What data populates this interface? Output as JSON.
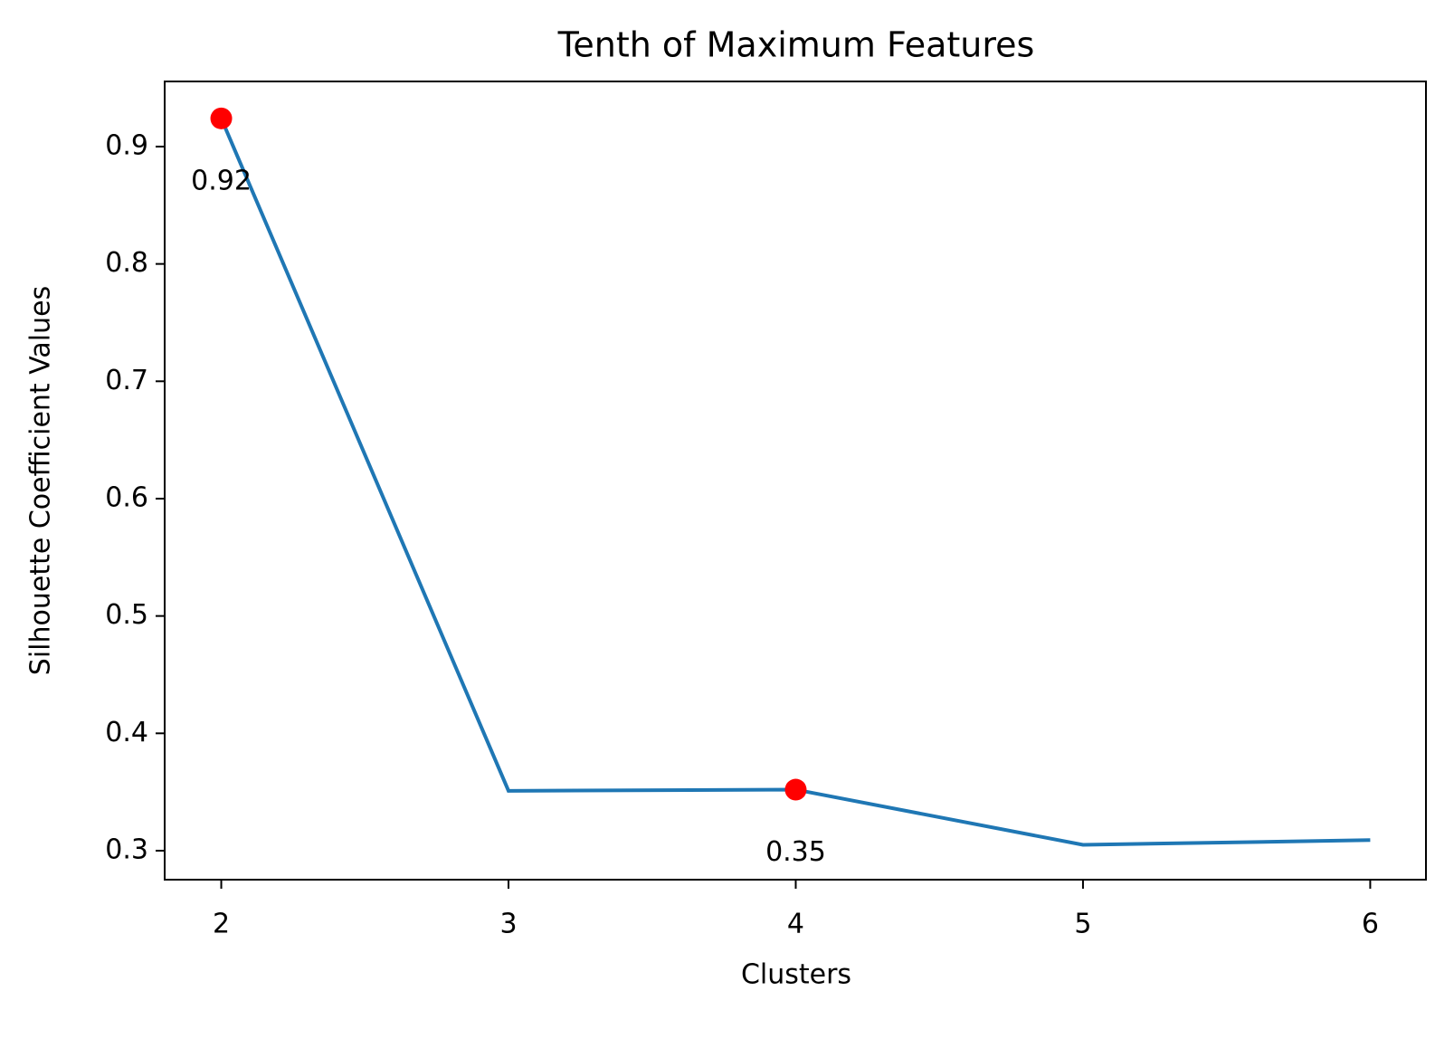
{
  "chart_data": {
    "type": "line",
    "title": "Tenth of Maximum Features",
    "x_label": "Clusters",
    "y_label": "Silhouette Coefficient Values",
    "x": [
      2,
      3,
      4,
      5,
      6
    ],
    "series": [
      {
        "color": "#1f77b4",
        "values": [
          0.924,
          0.351,
          0.352,
          0.305,
          0.309
        ]
      }
    ],
    "points": {
      "color": "#ff0000",
      "x": [
        2,
        4
      ],
      "values": [
        0.924,
        0.352
      ],
      "value_labels": [
        "0.92",
        "0.35"
      ]
    },
    "xlim": [
      1.803,
      6.194
    ],
    "ylim": [
      0.2753,
      0.9555
    ],
    "xticks": [
      2,
      3,
      4,
      5,
      6
    ],
    "yticks": [
      0.3,
      0.4,
      0.5,
      0.6,
      0.7,
      0.8,
      0.9
    ],
    "grid": false
  }
}
